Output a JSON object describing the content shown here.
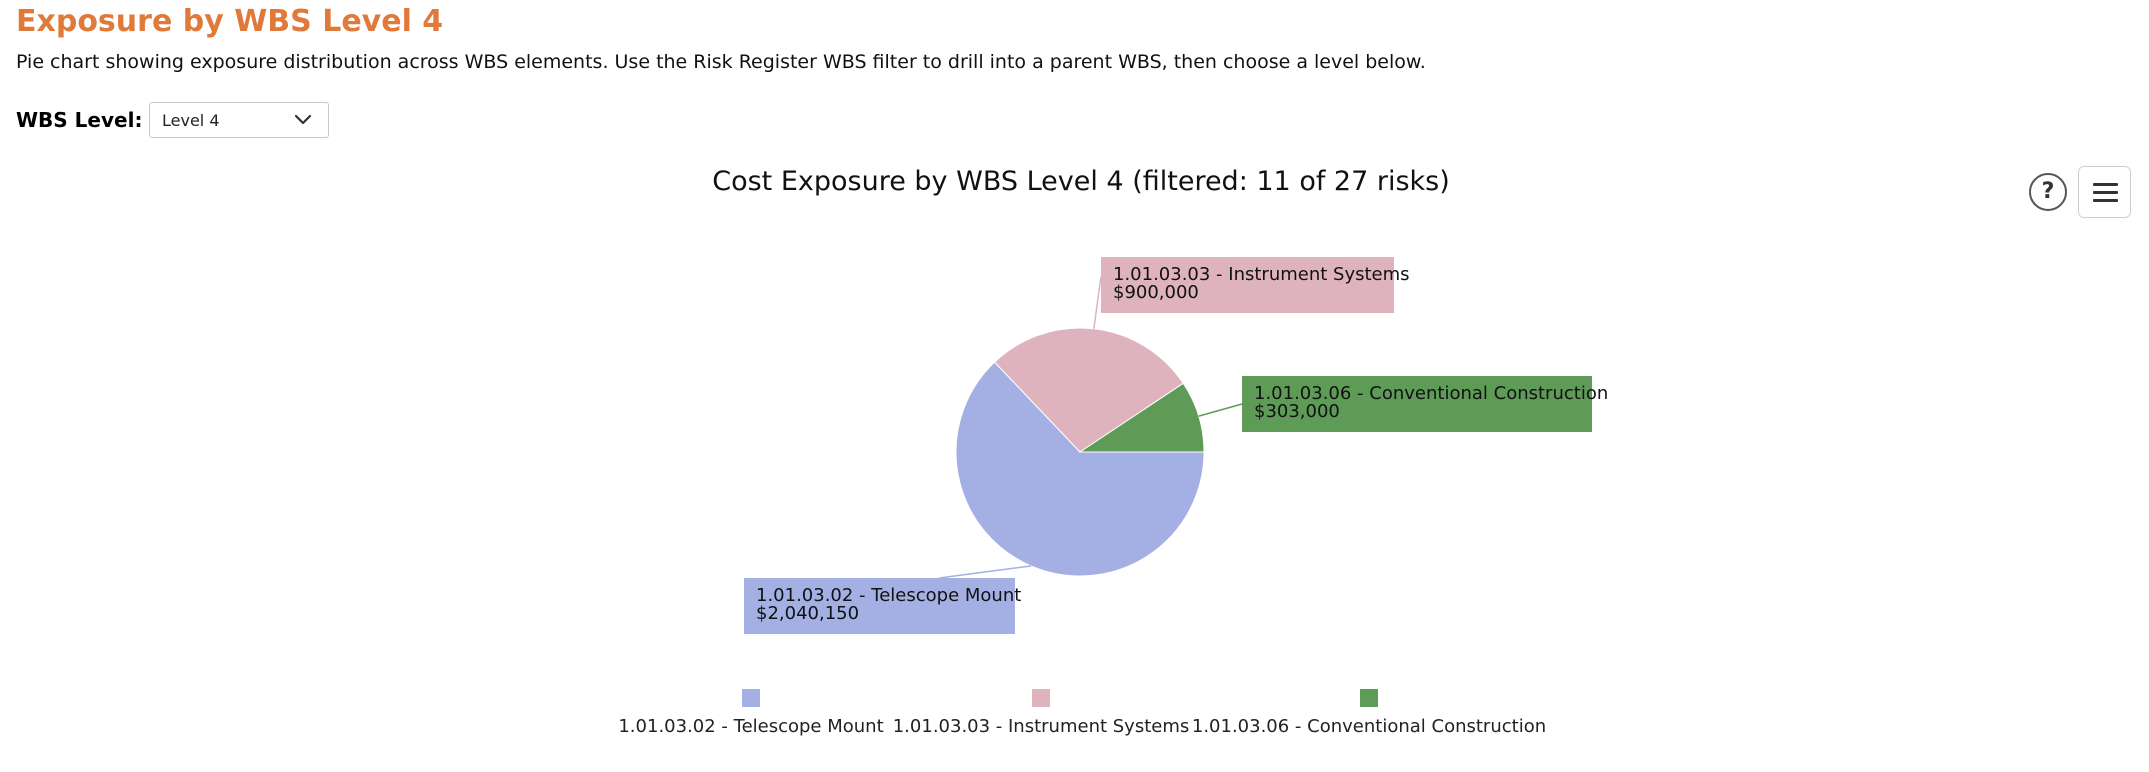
{
  "page": {
    "title": "Exposure by WBS Level 4",
    "description": "Pie chart showing exposure distribution across WBS elements. Use the Risk Register WBS filter to drill into a parent WBS, then choose a level below.",
    "accent_color": "#e07a3a"
  },
  "filter": {
    "label": "WBS Level:",
    "selected": "Level 4"
  },
  "toolbar": {
    "help_label": "?",
    "help_icon": "help-icon",
    "menu_icon": "hamburger-menu-icon"
  },
  "chart_data": {
    "type": "pie",
    "title": "Cost Exposure by WBS Level 4 (filtered: 11 of 27 risks)",
    "legend_position": "bottom",
    "slices": [
      {
        "label": "1.01.03.02 - Telescope Mount",
        "value": 2040150,
        "value_label": "$2,040,150",
        "color": "#a4b0e4"
      },
      {
        "label": "1.01.03.03 - Instrument Systems",
        "value": 900000,
        "value_label": "$900,000",
        "color": "#dfb3be"
      },
      {
        "label": "1.01.03.06 - Conventional Construction",
        "value": 303000,
        "value_label": "$303,000",
        "color": "#5e9b57"
      }
    ]
  }
}
